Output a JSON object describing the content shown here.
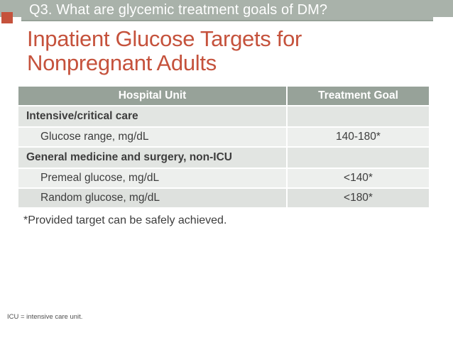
{
  "slide": {
    "kicker": "Q3. What are glycemic treatment goals of DM?",
    "title_line1": "Inpatient Glucose Targets for",
    "title_line2": "Nonpregnant Adults",
    "footnote": "*Provided target can be safely achieved.",
    "abbreviation_note": "ICU = intensive care unit."
  },
  "table": {
    "columns": [
      "Hospital Unit",
      "Treatment Goal"
    ],
    "rows": [
      {
        "label": "Intensive/critical care",
        "value": "",
        "type": "section"
      },
      {
        "label": "Glucose range, mg/dL",
        "value": "140-180*",
        "type": "data"
      },
      {
        "label": "General medicine and surgery, non-ICU",
        "value": "",
        "type": "section"
      },
      {
        "label": "Premeal glucose, mg/dL",
        "value": "<140*",
        "type": "data"
      },
      {
        "label": "Random glucose, mg/dL",
        "value": "<180*",
        "type": "data"
      }
    ]
  },
  "colors": {
    "accent_orange": "#c5523c",
    "band_sage": "#a9b2aa",
    "table_header_sage": "#97a299",
    "section_row_bg": "#e2e5e2",
    "data_row_bg": "#edefed",
    "data_row_alt_bg": "#dee1de",
    "text_dark": "#3d3d3d",
    "text_white": "#ffffff"
  }
}
